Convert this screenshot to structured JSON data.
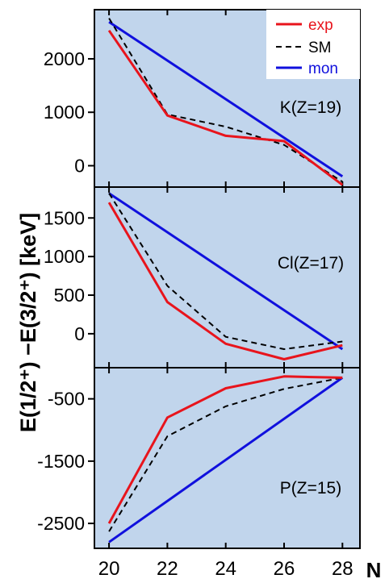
{
  "chart_data": {
    "type": "line",
    "ylabel": "E(1/2⁺) −E(3/2⁺) [keV]",
    "xlabel": "N",
    "x": [
      20,
      22,
      24,
      26,
      28
    ],
    "xticks": [
      "20",
      "22",
      "24",
      "26",
      "28"
    ],
    "xlim": [
      19.5,
      28.6
    ],
    "legend": {
      "placement": "top-right",
      "entries": [
        {
          "name": "exp",
          "color": "#e8141c",
          "style": "solid"
        },
        {
          "name": "SM",
          "color": "#000000",
          "style": "dashed"
        },
        {
          "name": "mon",
          "color": "#1010dd",
          "style": "solid"
        }
      ]
    },
    "colors": {
      "background": "#c1d5ec",
      "exp": "#e8141c",
      "SM": "#000000",
      "mon": "#1010dd"
    },
    "panels": [
      {
        "label": "K(Z=19)",
        "ylim": [
          -400,
          2920
        ],
        "yticks": [
          {
            "value": 2000,
            "label": "2000"
          },
          {
            "value": 1000,
            "label": "1000"
          },
          {
            "value": 0,
            "label": "0"
          }
        ],
        "series": [
          {
            "name": "exp",
            "values": [
              2530,
              940,
              560,
              460,
              -360
            ]
          },
          {
            "name": "SM",
            "values": [
              2760,
              960,
              730,
              390,
              -300
            ]
          },
          {
            "name": "mon",
            "values": [
              2690,
              null,
              null,
              null,
              -200
            ]
          }
        ]
      },
      {
        "label": "Cl(Z=17)",
        "ylim": [
          -440,
          1900
        ],
        "yticks": [
          {
            "value": 1500,
            "label": "1500"
          },
          {
            "value": 1000,
            "label": "1000"
          },
          {
            "value": 500,
            "label": "500"
          },
          {
            "value": 0,
            "label": "0"
          }
        ],
        "series": [
          {
            "name": "exp",
            "values": [
              1700,
              410,
              -130,
              -330,
              -150
            ]
          },
          {
            "name": "SM",
            "values": [
              1820,
              620,
              -40,
              -200,
              -100
            ]
          },
          {
            "name": "mon",
            "values": [
              1820,
              null,
              null,
              null,
              -200
            ]
          }
        ]
      },
      {
        "label": "P(Z=15)",
        "ylim": [
          -2900,
          0
        ],
        "yticks": [
          {
            "value": -500,
            "label": "-500"
          },
          {
            "value": -1500,
            "label": "-1500"
          },
          {
            "value": -2500,
            "label": "-2500"
          }
        ],
        "series": [
          {
            "name": "exp",
            "values": [
              -2500,
              -800,
              -330,
              -140,
              -160
            ]
          },
          {
            "name": "SM",
            "values": [
              -2630,
              -1100,
              -620,
              -340,
              -160
            ]
          },
          {
            "name": "mon",
            "values": [
              -2800,
              null,
              null,
              null,
              -160
            ]
          }
        ]
      }
    ]
  }
}
